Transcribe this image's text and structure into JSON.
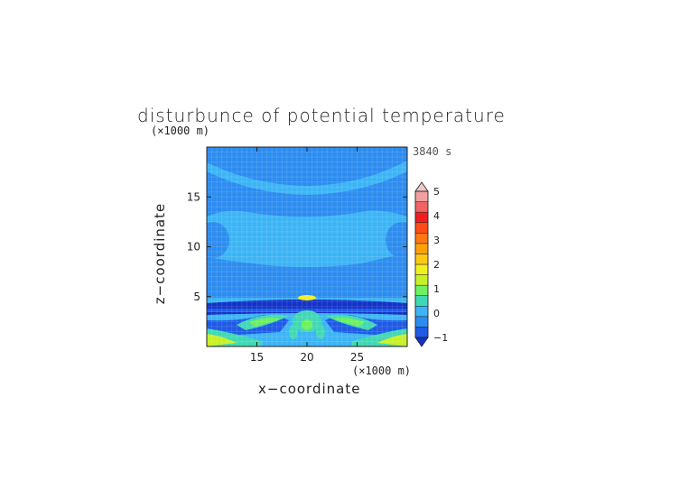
{
  "chart_data": {
    "type": "heatmap",
    "title": "disturbunce of potential temperature",
    "time_label": "3840 s",
    "xlabel": "x−coordinate",
    "ylabel": "z−coordinate",
    "x_unit": "(×1000 m)",
    "y_unit": "(×1000 m)",
    "xlim": [
      10,
      30
    ],
    "ylim": [
      0,
      20
    ],
    "x_ticks": [
      "15",
      "20",
      "25"
    ],
    "y_ticks": [
      "5",
      "10",
      "15"
    ],
    "colorbar": {
      "min": -1,
      "max": 5,
      "step": 0.5,
      "tick_labels": [
        "5",
        "4",
        "3",
        "2",
        "1",
        "0",
        "−1"
      ],
      "colors": [
        "#1432c8",
        "#1e5ae6",
        "#2c8cf0",
        "#3cb4f5",
        "#40d8b4",
        "#6ef060",
        "#c8f028",
        "#f0f020",
        "#ffc814",
        "#ffa00a",
        "#ff7814",
        "#ff4b14",
        "#f01e1e",
        "#f06464",
        "#f0a0a0",
        "#f0c8c8"
      ]
    },
    "regions": [
      {
        "level": 0.25,
        "desc": "upper domain band"
      },
      {
        "level": 0.75,
        "desc": "low-level lobes"
      },
      {
        "level": 1.5,
        "desc": "near-surface maxima"
      },
      {
        "level": -0.75,
        "desc": "negative bands at z≈4 km"
      }
    ]
  }
}
